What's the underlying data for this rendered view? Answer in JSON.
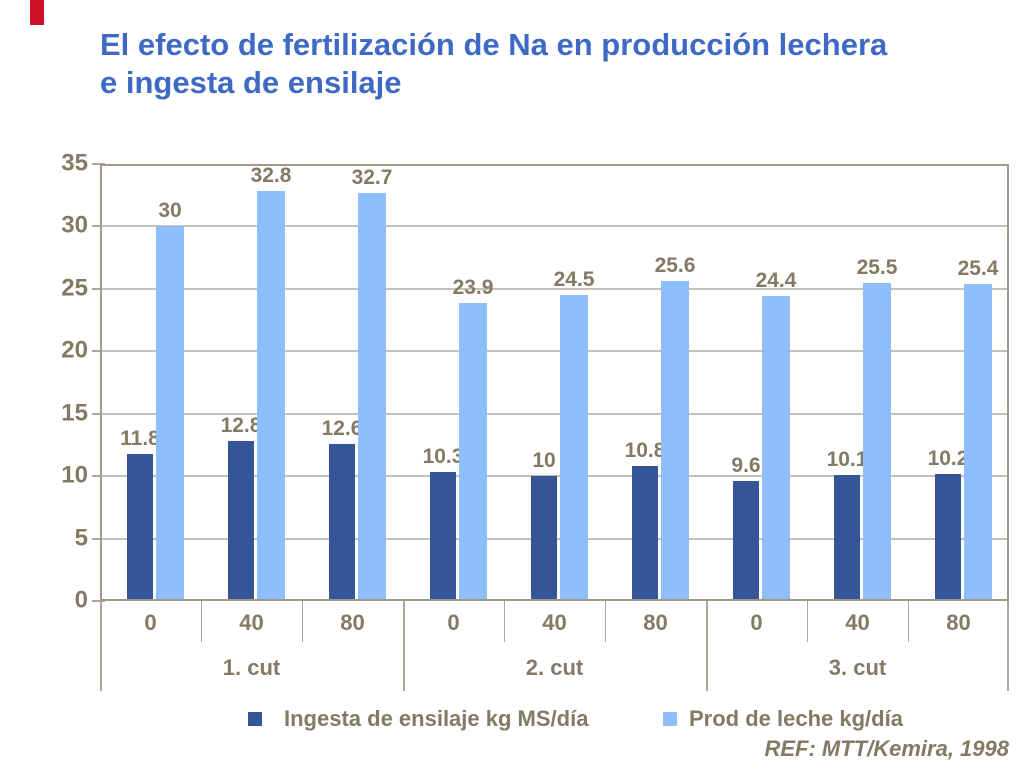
{
  "header": {
    "title_lines": [
      "El efecto de fertilización de Na en producción lechera",
      "e ingesta de ensilaje"
    ],
    "title_color": "#3E6AC6",
    "accent_mark_color": "#CE1126"
  },
  "chart_data": {
    "type": "bar",
    "title": "El efecto de fertilización de Na en producción lechera e ingesta de ensilaje",
    "xlabel": "",
    "ylabel": "",
    "categories": [
      "0",
      "40",
      "80",
      "0",
      "40",
      "80",
      "0",
      "40",
      "80"
    ],
    "groups": [
      {
        "label": "1. cut",
        "span": 3
      },
      {
        "label": "2. cut",
        "span": 3
      },
      {
        "label": "3. cut",
        "span": 3
      }
    ],
    "series": [
      {
        "name": "Ingesta de ensilaje kg MS/día",
        "color": "#345598",
        "values": [
          11.8,
          12.8,
          12.6,
          10.3,
          10,
          10.8,
          9.6,
          10.1,
          10.2
        ]
      },
      {
        "name": "Prod de leche kg/día",
        "color": "#8EBFFC",
        "values": [
          30,
          32.8,
          32.7,
          23.9,
          24.5,
          25.6,
          24.4,
          25.5,
          25.4
        ]
      }
    ],
    "ylim": [
      0,
      35
    ],
    "yticks": [
      0,
      5,
      10,
      15,
      20,
      25,
      30,
      35
    ],
    "grid": true,
    "data_labels": true,
    "legend_position": "bottom",
    "text_color": "#847A63",
    "grid_color": "#C6C1B8",
    "frame_color": "#A09888",
    "tick_color": "#ACA69C"
  },
  "footer": {
    "ref": "REF: MTT/Kemira, 1998"
  }
}
